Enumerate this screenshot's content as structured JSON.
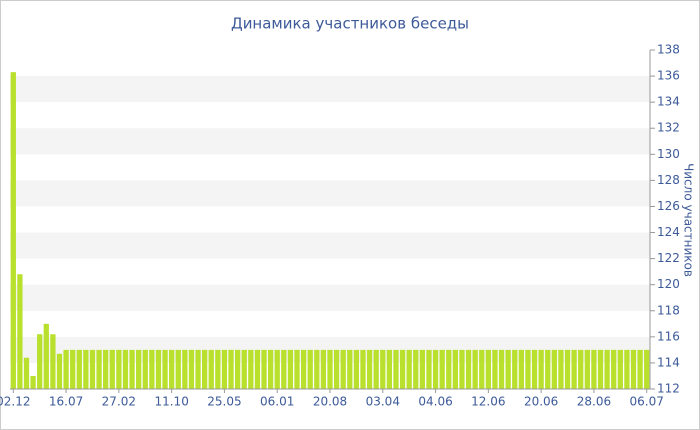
{
  "chart_data": {
    "type": "bar",
    "title": "Динамика участников беседы",
    "y_label": "Число участников",
    "categories": [
      "02.12",
      null,
      null,
      null,
      null,
      null,
      null,
      null,
      "16.07",
      null,
      null,
      null,
      null,
      null,
      null,
      null,
      "27.02",
      null,
      null,
      null,
      null,
      null,
      null,
      null,
      "11.10",
      null,
      null,
      null,
      null,
      null,
      null,
      null,
      "25.05",
      null,
      null,
      null,
      null,
      null,
      null,
      null,
      "06.01",
      null,
      null,
      null,
      null,
      null,
      null,
      null,
      "20.08",
      null,
      null,
      null,
      null,
      null,
      null,
      null,
      "03.04",
      null,
      null,
      null,
      null,
      null,
      null,
      null,
      "04.06",
      null,
      null,
      null,
      null,
      null,
      null,
      null,
      "12.06",
      null,
      null,
      null,
      null,
      null,
      null,
      null,
      "20.06",
      null,
      null,
      null,
      null,
      null,
      null,
      null,
      "28.06",
      null,
      null,
      null,
      null,
      null,
      null,
      null,
      "06.07"
    ],
    "values": [
      136.3,
      120.8,
      114.4,
      113,
      116.2,
      117,
      116.2,
      114.7,
      115,
      115,
      115,
      115,
      115,
      115,
      115,
      115,
      115,
      115,
      115,
      115,
      115,
      115,
      115,
      115,
      115,
      115,
      115,
      115,
      115,
      115,
      115,
      115,
      115,
      115,
      115,
      115,
      115,
      115,
      115,
      115,
      115,
      115,
      115,
      115,
      115,
      115,
      115,
      115,
      115,
      115,
      115,
      115,
      115,
      115,
      115,
      115,
      115,
      115,
      115,
      115,
      115,
      115,
      115,
      115,
      115,
      115,
      115,
      115,
      115,
      115,
      115,
      115,
      115,
      115,
      115,
      115,
      115,
      115,
      115,
      115,
      115,
      115,
      115,
      115,
      115,
      115,
      115,
      115,
      115,
      115,
      115,
      115,
      115,
      115,
      115,
      115,
      115
    ],
    "color": "#b8e02c",
    "ylim": [
      112,
      138
    ],
    "yticks": [
      112,
      114,
      116,
      118,
      120,
      122,
      124,
      126,
      128,
      130,
      132,
      134,
      136,
      138
    ],
    "grid": true
  }
}
